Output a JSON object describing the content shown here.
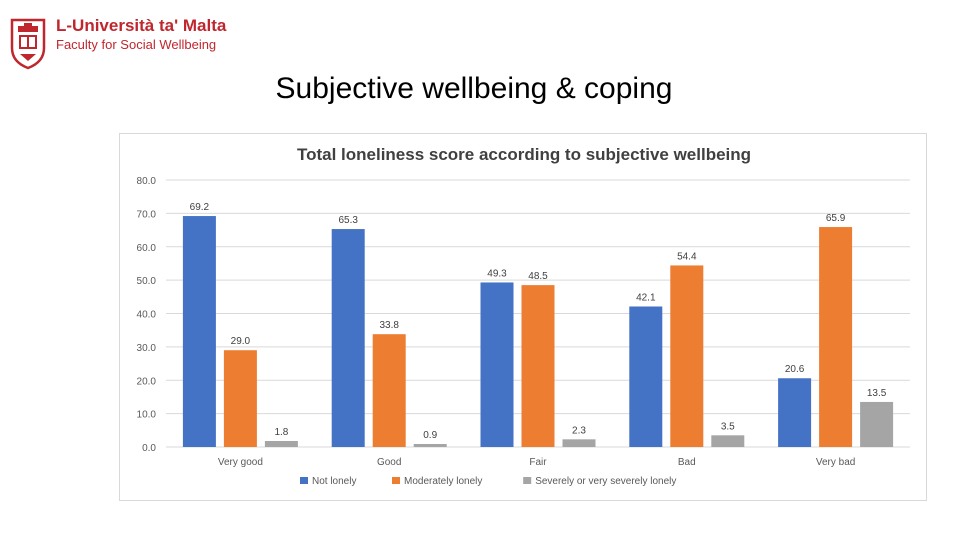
{
  "header": {
    "university": "L-Università ta' Malta",
    "faculty": "Faculty for Social Wellbeing"
  },
  "slide": {
    "title": "Subjective wellbeing & coping"
  },
  "colors": {
    "accent": "#c0262e",
    "series": [
      "#4472c4",
      "#ed7d31",
      "#a5a5a5"
    ]
  },
  "chart_data": {
    "type": "bar",
    "title": "Total loneliness score according to subjective wellbeing",
    "xlabel": "",
    "ylabel": "",
    "ylim": [
      0,
      80
    ],
    "yticks": [
      "0.0",
      "10.0",
      "20.0",
      "30.0",
      "40.0",
      "50.0",
      "60.0",
      "70.0",
      "80.0"
    ],
    "categories": [
      "Very good",
      "Good",
      "Fair",
      "Bad",
      "Very bad"
    ],
    "series": [
      {
        "name": "Not lonely",
        "values": [
          69.2,
          65.3,
          49.3,
          42.1,
          20.6
        ],
        "labels": [
          "69.2",
          "65.3",
          "49.3",
          "42.1",
          "20.6"
        ]
      },
      {
        "name": "Moderately lonely",
        "values": [
          29.0,
          33.8,
          48.5,
          54.4,
          65.9
        ],
        "labels": [
          "29.0",
          "33.8",
          "48.5",
          "54.4",
          "65.9"
        ]
      },
      {
        "name": "Severely or very severely lonely",
        "values": [
          1.8,
          0.9,
          2.3,
          3.5,
          13.5
        ],
        "labels": [
          "1.8",
          "0.9",
          "2.3",
          "3.5",
          "13.5"
        ]
      }
    ],
    "legend": "bottom",
    "grid": true
  }
}
